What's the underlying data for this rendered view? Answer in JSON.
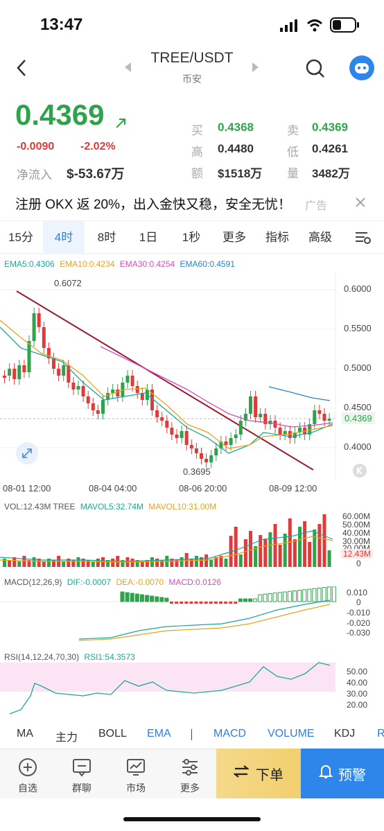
{
  "status": {
    "time": "13:47"
  },
  "nav": {
    "title": "TREE/USDT",
    "exchange": "币安"
  },
  "ticker": {
    "price": "0.4369",
    "change": "-0.0090",
    "change_pct": "-2.02%",
    "net_inflow_label": "净流入",
    "net_inflow": "$-53.67万",
    "buy_label": "买",
    "buy": "0.4368",
    "sell_label": "卖",
    "sell": "0.4369",
    "high_label": "高",
    "high": "0.4480",
    "low_label": "低",
    "low": "0.4261",
    "amount_label": "额",
    "amount": "$1518万",
    "volume_label": "量",
    "volume": "3482万"
  },
  "ad": {
    "text": "注册 OKX 返 20%，出入金快又稳，安全无忧！",
    "tag": "广告"
  },
  "tabs": [
    "15分",
    "4时",
    "8时",
    "1日",
    "1秒",
    "更多",
    "指标",
    "高级"
  ],
  "active_tab": "4时",
  "ema_legend": {
    "ema5": "EMA5:0.4306",
    "ema10": "EMA10:0.4234",
    "ema30": "EMA30:0.4254",
    "ema60": "EMA60:0.4591"
  },
  "price_axis": [
    "0.6000",
    "0.5500",
    "0.5000",
    "0.4500",
    "0.4000"
  ],
  "current_price_tag": "0.4369",
  "high_marker": "0.6072",
  "low_marker": "0.3695",
  "time_axis": [
    "08-01 12:00",
    "08-04 04:00",
    "08-06 20:00",
    "08-09 12:00"
  ],
  "vol_legend": {
    "vol": "VOL:12.43M TREE",
    "mavol5": "MAVOL5:32.74M",
    "mavol10": "MAVOL10:31.00M"
  },
  "vol_axis": [
    "60.00M",
    "50.00M",
    "40.00M",
    "30.00M",
    "20.00M",
    "12.43M",
    "0"
  ],
  "macd_legend": {
    "name": "MACD(12,26,9)",
    "dif": "DIF:-0.0007",
    "dea": "DEA:-0.0070",
    "macd": "MACD:0.0126"
  },
  "macd_axis": [
    "0.010",
    "0",
    "-0.010",
    "-0.020",
    "-0.030"
  ],
  "rsi_legend": {
    "name": "RSI(14,12,24,70,30)",
    "rsi1": "RSI1:54.3573"
  },
  "rsi_axis": [
    "50.00",
    "40.00",
    "30.00",
    "20.00"
  ],
  "indicators": [
    "MA",
    "主力",
    "BOLL",
    "EMA",
    "MACD",
    "VOLUME",
    "KDJ",
    "R"
  ],
  "bottom_nav": [
    "自选",
    "群聊",
    "市场",
    "更多"
  ],
  "order_label": "下单",
  "alarm_label": "预警",
  "colors": {
    "up": "#2fa34b",
    "down": "#e03b3b",
    "accent": "#2f7fe0"
  }
}
